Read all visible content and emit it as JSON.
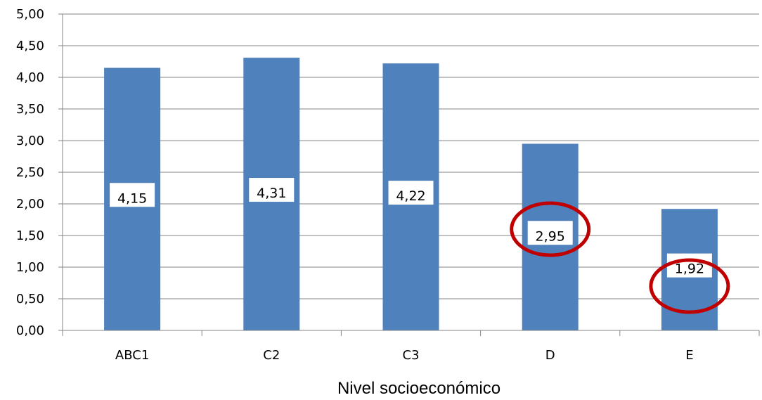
{
  "chart_data": {
    "type": "bar",
    "categories": [
      "ABC1",
      "C2",
      "C3",
      "D",
      "E"
    ],
    "values": [
      4.15,
      4.31,
      4.22,
      2.95,
      1.92
    ],
    "data_labels": [
      "4,15",
      "4,31",
      "4,22",
      "2,95",
      "1,92"
    ],
    "xlabel": "Nivel socioeconómico",
    "ylabel": "",
    "ylim": [
      0,
      5
    ],
    "yticks": [
      0,
      0.5,
      1,
      1.5,
      2,
      2.5,
      3,
      3.5,
      4,
      4.5,
      5
    ],
    "ytick_labels": [
      "0,00",
      "0,50",
      "1,00",
      "1,50",
      "2,00",
      "2,50",
      "3,00",
      "3,50",
      "4,00",
      "4,50",
      "5,00"
    ],
    "grid": true,
    "bar_color": "#4F81BD",
    "highlighted_categories": [
      "D",
      "E"
    ],
    "highlight_color": "#C00000"
  }
}
